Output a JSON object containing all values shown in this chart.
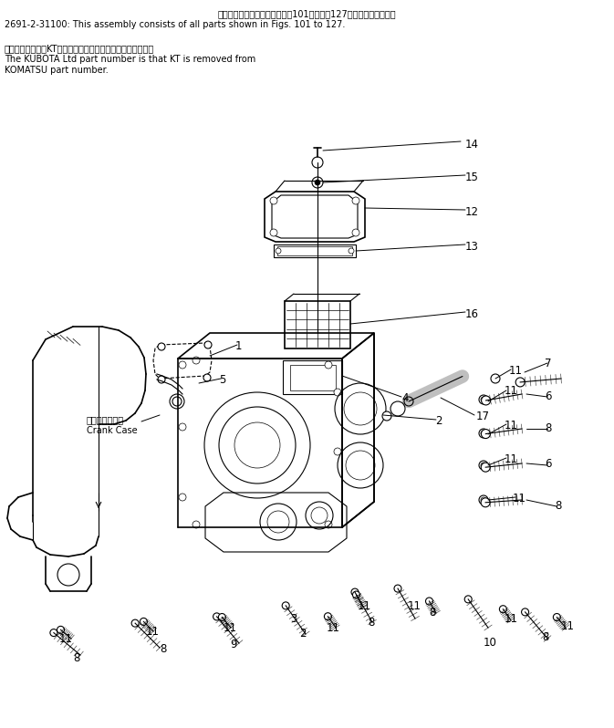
{
  "background_color": "#ffffff",
  "fig_width": 6.73,
  "fig_height": 7.98,
  "dpi": 100,
  "header": {
    "line1_jp": "このアセンブリの構成部品は第101図から第127図までご卓みます．",
    "line1_en": "2691-2-31100: This assembly consists of all parts shown in Figs. 101 to 127.",
    "line2_jp": "品番のメーカ記号KTを除いたものが久保田細工の品番です．",
    "line2_en1": "The KUBOTA Ltd part number is that KT is removed from",
    "line2_en2": "KOMATSU part number."
  }
}
